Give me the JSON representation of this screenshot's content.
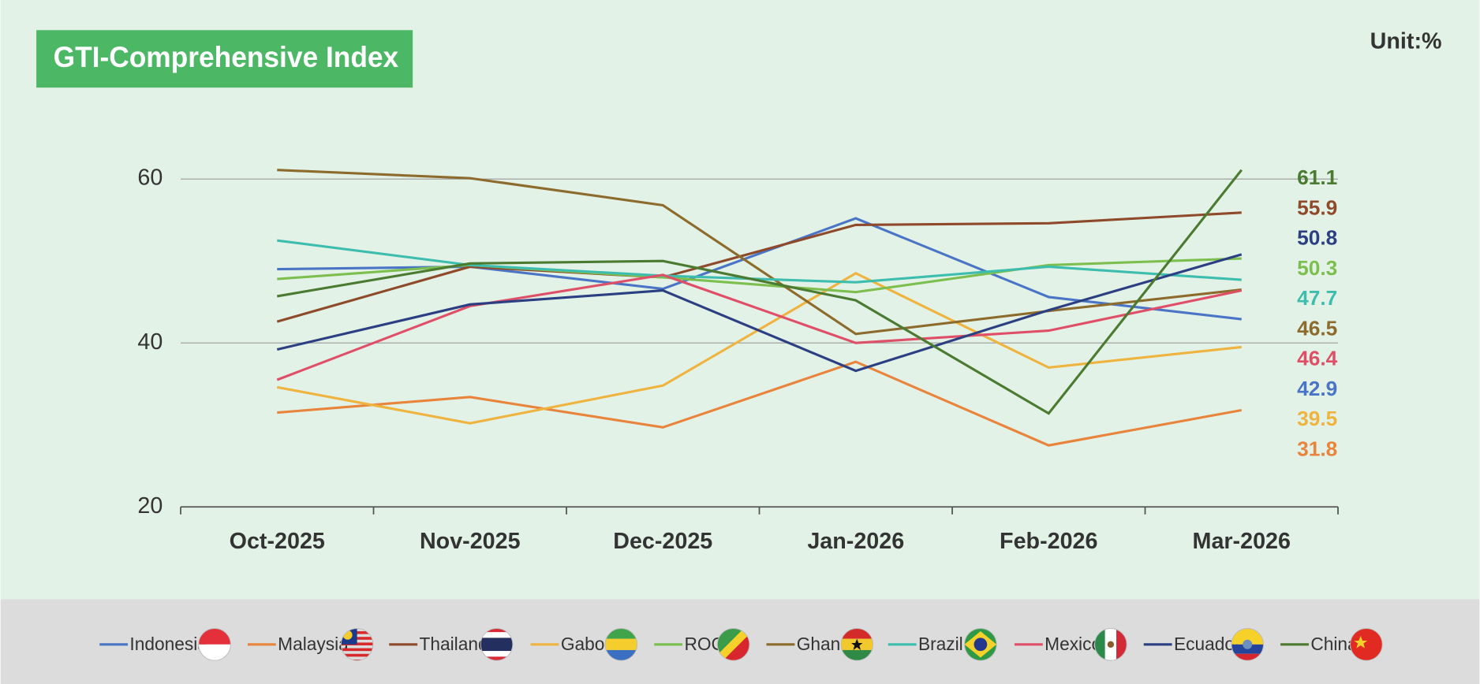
{
  "chart_data": {
    "type": "line",
    "title": "GTI-Comprehensive Index",
    "unit_note": "Unit:%",
    "categories": [
      "Oct-2025",
      "Nov-2025",
      "Dec-2025",
      "Jan-2026",
      "Feb-2026",
      "Mar-2026"
    ],
    "ylim": [
      20,
      60
    ],
    "yticks": [
      20,
      40,
      60
    ],
    "grid": true,
    "legend": "bottom",
    "series": [
      {
        "name": "Indonesia",
        "color": "#4a74c6",
        "values": [
          49.0,
          49.3,
          46.6,
          55.2,
          45.6,
          42.9
        ]
      },
      {
        "name": "Malaysia",
        "color": "#e8843c",
        "values": [
          31.5,
          33.4,
          29.7,
          37.7,
          27.5,
          31.8
        ]
      },
      {
        "name": "Thailand",
        "color": "#8e4a2a",
        "values": [
          42.6,
          49.3,
          48.0,
          54.4,
          54.6,
          55.9
        ]
      },
      {
        "name": "Gabon",
        "color": "#efb33f",
        "values": [
          34.6,
          30.2,
          34.8,
          48.5,
          37.0,
          39.5
        ]
      },
      {
        "name": "ROC",
        "color": "#7dbf4e",
        "values": [
          47.8,
          49.5,
          48.0,
          46.2,
          49.5,
          50.3
        ]
      },
      {
        "name": "Ghana",
        "color": "#8c6b2c",
        "values": [
          61.1,
          60.1,
          56.8,
          41.1,
          43.9,
          46.5
        ]
      },
      {
        "name": "Brazil",
        "color": "#3dbdae",
        "values": [
          52.5,
          49.5,
          48.2,
          47.4,
          49.3,
          47.7
        ]
      },
      {
        "name": "Mexico",
        "color": "#df4f68",
        "values": [
          35.5,
          44.5,
          48.3,
          40.0,
          41.5,
          46.4
        ]
      },
      {
        "name": "Ecuador",
        "color": "#2b3f82",
        "values": [
          39.2,
          44.7,
          46.4,
          36.6,
          44.0,
          50.8
        ]
      },
      {
        "name": "China",
        "color": "#4b7a31",
        "values": [
          45.7,
          49.7,
          50.0,
          45.2,
          31.4,
          61.1
        ]
      }
    ]
  }
}
